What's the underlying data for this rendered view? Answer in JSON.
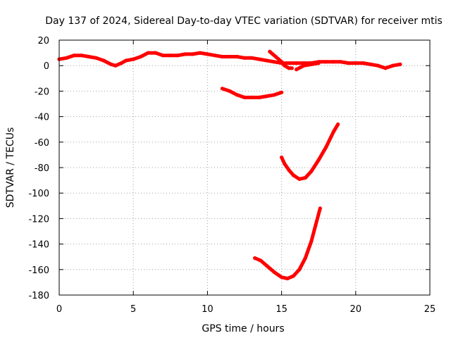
{
  "chart_data": {
    "type": "line",
    "title": "Day 137 of 2024, Sidereal Day-to-day VTEC variation (SDTVAR) for receiver mtis",
    "xlabel": "GPS time / hours",
    "ylabel": "SDTVAR / TECUs",
    "xlim": [
      0,
      25
    ],
    "ylim": [
      -180,
      20
    ],
    "xticks": [
      0,
      5,
      10,
      15,
      20,
      25
    ],
    "yticks": [
      20,
      0,
      -20,
      -40,
      -60,
      -80,
      -100,
      -120,
      -140,
      -160,
      -180
    ],
    "grid": true,
    "color": "#ff0000",
    "series": [
      {
        "points": [
          [
            0,
            5
          ],
          [
            0.5,
            6
          ],
          [
            1,
            8
          ],
          [
            1.5,
            8
          ],
          [
            2,
            7
          ],
          [
            2.5,
            6
          ],
          [
            3,
            4
          ],
          [
            3.5,
            1
          ],
          [
            3.8,
            0
          ],
          [
            4.2,
            2
          ],
          [
            4.5,
            4
          ],
          [
            5,
            5
          ],
          [
            5.5,
            7
          ],
          [
            6,
            10
          ],
          [
            6.5,
            10
          ],
          [
            7,
            8
          ],
          [
            7.5,
            8
          ],
          [
            8,
            8
          ],
          [
            8.5,
            9
          ],
          [
            9,
            9
          ],
          [
            9.5,
            10
          ],
          [
            10,
            9
          ],
          [
            10.5,
            8
          ],
          [
            11,
            7
          ],
          [
            11.5,
            7
          ],
          [
            12,
            7
          ],
          [
            12.5,
            6
          ],
          [
            13,
            6
          ],
          [
            13.5,
            5
          ],
          [
            14,
            4
          ],
          [
            14.5,
            3
          ],
          [
            15,
            2
          ],
          [
            15.5,
            2
          ],
          [
            16,
            2
          ],
          [
            16.5,
            2
          ],
          [
            17,
            2
          ],
          [
            17.5,
            3
          ],
          [
            18,
            3
          ],
          [
            18.5,
            3
          ],
          [
            19,
            3
          ],
          [
            19.5,
            2
          ],
          [
            20,
            2
          ],
          [
            20.5,
            2
          ],
          [
            21,
            1
          ],
          [
            21.5,
            0
          ],
          [
            22,
            -2
          ],
          [
            22.5,
            0
          ],
          [
            23,
            1
          ]
        ]
      },
      {
        "points": [
          [
            14.2,
            11
          ],
          [
            14.4,
            9
          ],
          [
            14.6,
            7
          ],
          [
            14.8,
            5
          ],
          [
            15,
            3
          ],
          [
            15.2,
            0
          ],
          [
            15.5,
            -2
          ],
          [
            15.7,
            -2
          ]
        ]
      },
      {
        "points": [
          [
            16,
            -3
          ],
          [
            16.5,
            0
          ],
          [
            17,
            1
          ],
          [
            17.5,
            2
          ]
        ]
      },
      {
        "points": [
          [
            11,
            -18
          ],
          [
            11.5,
            -20
          ],
          [
            12,
            -23
          ],
          [
            12.5,
            -25
          ],
          [
            13,
            -25
          ],
          [
            13.5,
            -25
          ],
          [
            14,
            -24
          ],
          [
            14.5,
            -23
          ],
          [
            15,
            -21
          ]
        ]
      },
      {
        "points": [
          [
            15,
            -72
          ],
          [
            15.2,
            -77
          ],
          [
            15.5,
            -82
          ],
          [
            15.8,
            -86
          ],
          [
            16.2,
            -89
          ],
          [
            16.6,
            -88
          ],
          [
            17,
            -83
          ],
          [
            17.5,
            -74
          ],
          [
            18,
            -64
          ],
          [
            18.5,
            -52
          ],
          [
            18.8,
            -46
          ]
        ]
      },
      {
        "points": [
          [
            13.2,
            -151
          ],
          [
            13.6,
            -153
          ],
          [
            14,
            -157
          ],
          [
            14.5,
            -162
          ],
          [
            15,
            -166
          ],
          [
            15.4,
            -167
          ],
          [
            15.8,
            -165
          ],
          [
            16.2,
            -160
          ],
          [
            16.6,
            -151
          ],
          [
            17,
            -138
          ],
          [
            17.3,
            -125
          ],
          [
            17.6,
            -112
          ]
        ]
      }
    ]
  }
}
